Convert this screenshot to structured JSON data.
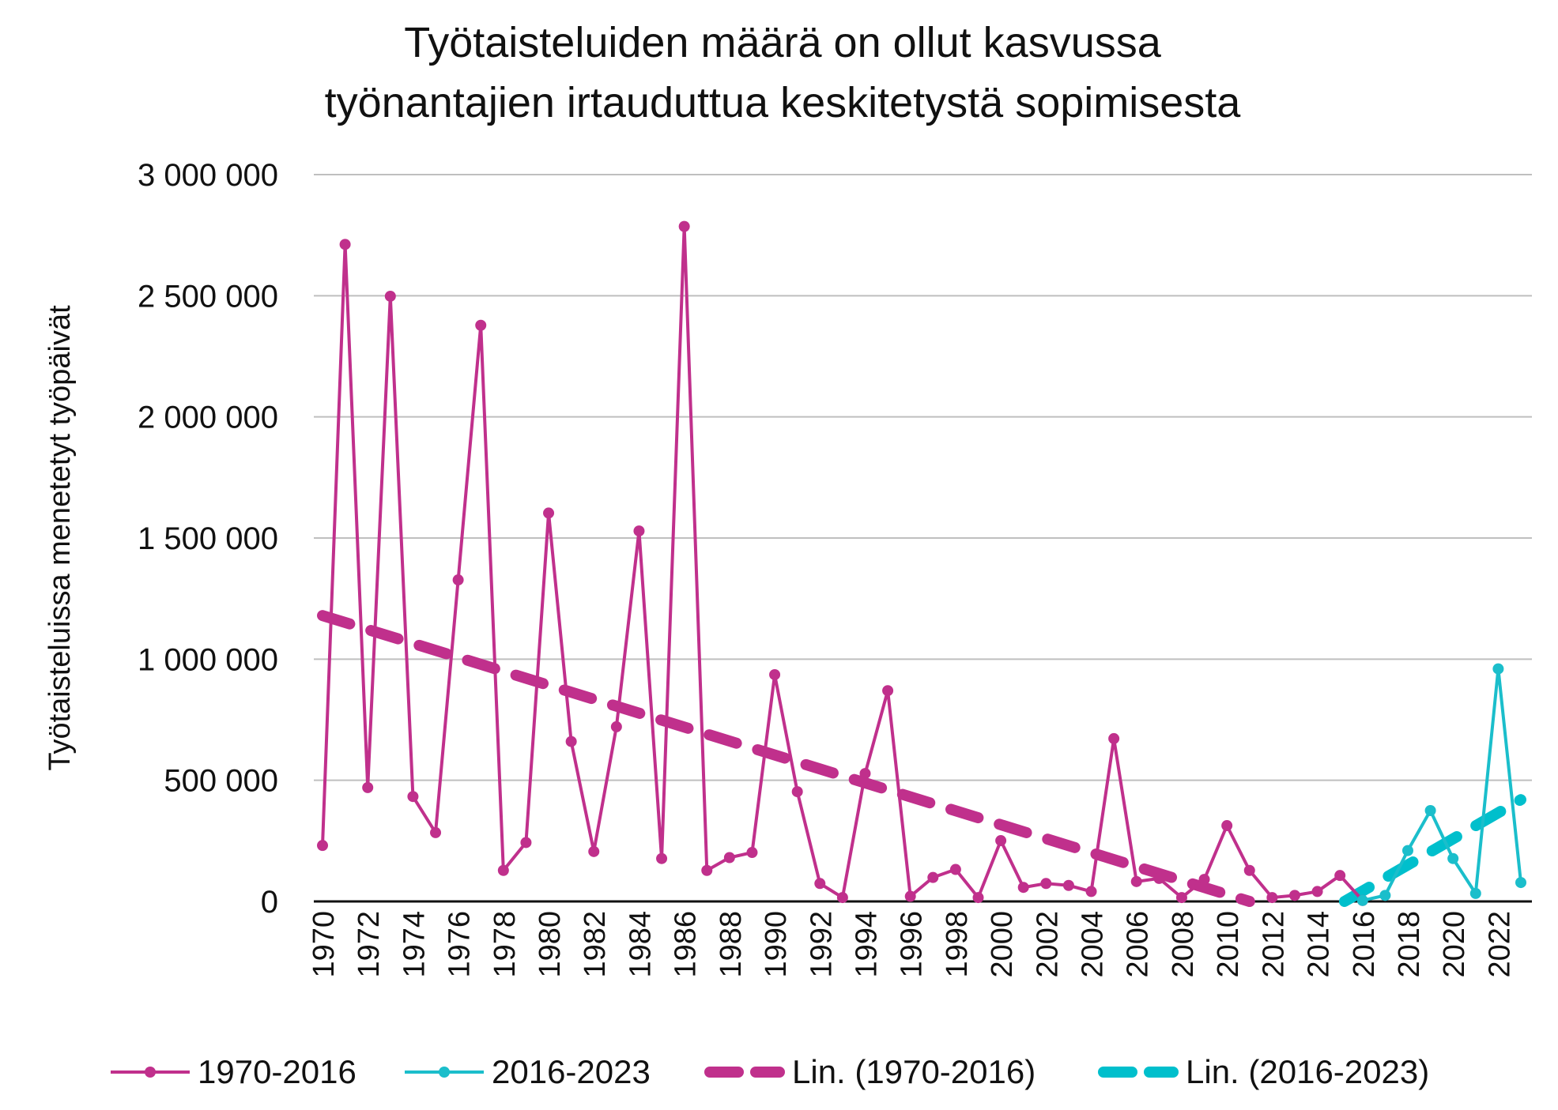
{
  "chart_data": {
    "type": "line",
    "title": [
      "Työtaisteluiden määrä on ollut kasvussa",
      "työnantajien irtauduttua keskitetystä sopimisesta"
    ],
    "xlabel": "",
    "ylabel": "Työtaisteluissa menetetyt työpäivät",
    "ylim": [
      0,
      3000000
    ],
    "xlim": [
      1970,
      2023
    ],
    "grid": true,
    "legend_position": "bottom",
    "y_ticks": [
      {
        "value": 0,
        "label": "0"
      },
      {
        "value": 500000,
        "label": "500 000"
      },
      {
        "value": 1000000,
        "label": "1 000 000"
      },
      {
        "value": 1500000,
        "label": "1 500 000"
      },
      {
        "value": 2000000,
        "label": "2 000 000"
      },
      {
        "value": 2500000,
        "label": "2 500 000"
      },
      {
        "value": 3000000,
        "label": "3 000 000"
      }
    ],
    "x_ticks": [
      "1970",
      "1972",
      "1974",
      "1976",
      "1978",
      "1980",
      "1982",
      "1984",
      "1986",
      "1988",
      "1990",
      "1992",
      "1994",
      "1996",
      "1998",
      "2000",
      "2002",
      "2004",
      "2006",
      "2008",
      "2010",
      "2012",
      "2014",
      "2016",
      "2018",
      "2020",
      "2022"
    ],
    "series": [
      {
        "name": "1970-2016",
        "color": "#c0308c",
        "x": [
          1970,
          1971,
          1972,
          1973,
          1974,
          1975,
          1976,
          1977,
          1978,
          1979,
          1980,
          1981,
          1982,
          1983,
          1984,
          1985,
          1986,
          1987,
          1988,
          1989,
          1990,
          1991,
          1992,
          1993,
          1994,
          1995,
          1996,
          1997,
          1998,
          1999,
          2000,
          2001,
          2002,
          2003,
          2004,
          2005,
          2006,
          2007,
          2008,
          2009,
          2010,
          2011,
          2012,
          2013,
          2014,
          2015,
          2016
        ],
        "values": [
          231000,
          2712000,
          470000,
          2498000,
          433000,
          284000,
          1327000,
          2378000,
          128000,
          243000,
          1603000,
          660000,
          206000,
          721000,
          1529000,
          177000,
          2786000,
          128000,
          181000,
          202000,
          936000,
          453000,
          74000,
          16000,
          528000,
          870000,
          21000,
          99000,
          132000,
          16000,
          251000,
          58000,
          74000,
          66000,
          41000,
          672000,
          82000,
          95000,
          16000,
          91000,
          313000,
          128000,
          16000,
          25000,
          41000,
          107000,
          4000
        ]
      },
      {
        "name": "2016-2023",
        "color": "#1bbecb",
        "x": [
          2016,
          2017,
          2018,
          2019,
          2020,
          2021,
          2022,
          2023
        ],
        "values": [
          4000,
          25000,
          210000,
          375000,
          177000,
          33000,
          960000,
          78000
        ]
      }
    ],
    "trendlines": [
      {
        "name": "Lin. (1970-2016)",
        "color": "#c0308c",
        "from": [
          1970,
          1180000
        ],
        "to": [
          2011,
          0
        ]
      },
      {
        "name": "Lin. (2016-2023)",
        "color": "#00bfcc",
        "from": [
          2015.2,
          0
        ],
        "to": [
          2023,
          420000
        ]
      }
    ]
  }
}
